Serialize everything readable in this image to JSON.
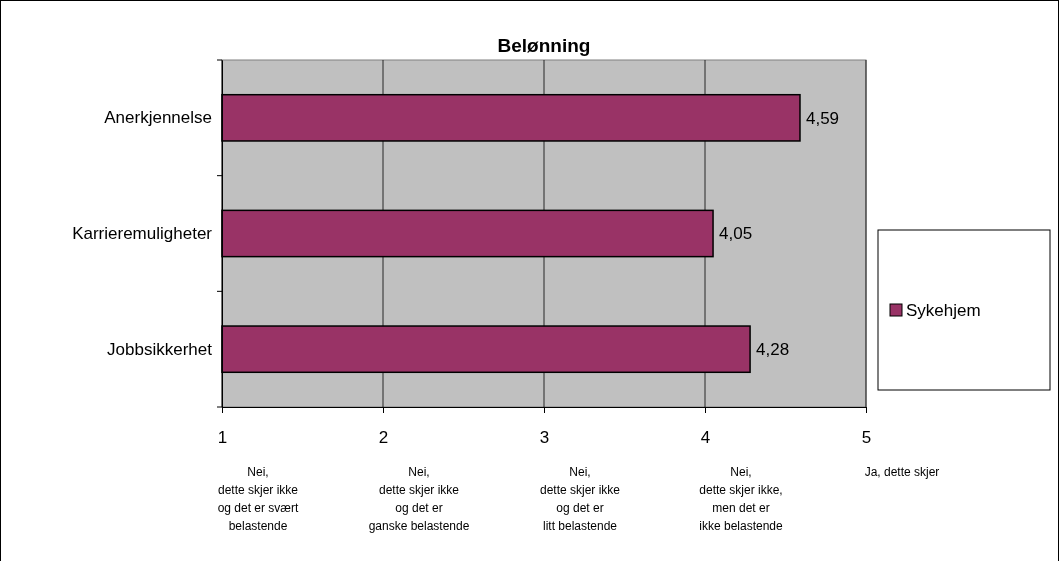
{
  "chart_data": {
    "type": "bar",
    "orientation": "horizontal",
    "title": "Belønning",
    "categories": [
      "Anerkjennelse",
      "Karrieremuligheter",
      "Jobbsikkerhet"
    ],
    "series": [
      {
        "name": "Sykehjem",
        "color": "#993366",
        "values": [
          4.59,
          4.05,
          4.28
        ],
        "value_labels": [
          "4,59",
          "4,05",
          "4,28"
        ]
      }
    ],
    "xlim": [
      1,
      5
    ],
    "xticks": [
      1,
      2,
      3,
      4,
      5
    ],
    "grid": "x",
    "legend": "right",
    "annotations": [
      "Nei,\ndette skjer ikke\nog det er svært\nbelastende",
      "Nei,\ndette skjer ikke\nog det er\nganske belastende",
      "Nei,\ndette skjer ikke\nog det er\nlitt belastende",
      "Nei,\ndette skjer ikke,\nmen det er\nikke belastende",
      "Ja, dette skjer"
    ]
  }
}
